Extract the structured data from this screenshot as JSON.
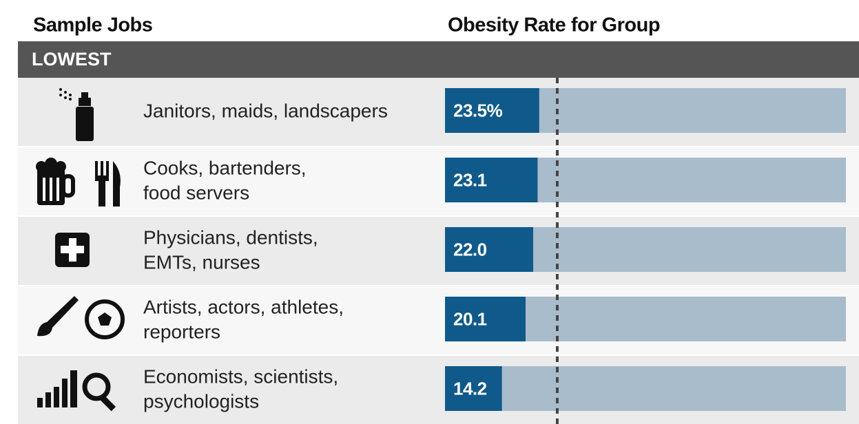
{
  "chart_data": {
    "type": "bar",
    "orientation": "horizontal",
    "column_headers": [
      "Sample Jobs",
      "Obesity Rate for Group"
    ],
    "section": "LOWEST",
    "categories": [
      [
        "Janitors, maids, landscapers"
      ],
      [
        "Cooks, bartenders,",
        "food servers"
      ],
      [
        "Physicians, dentists,",
        "EMTs, nurses"
      ],
      [
        "Artists, actors, athletes,",
        "reporters"
      ],
      [
        "Economists, scientists,",
        "psychologists"
      ]
    ],
    "values": [
      23.5,
      23.1,
      22.0,
      20.1,
      14.2
    ],
    "value_labels": [
      "23.5%",
      "23.1",
      "22.0",
      "20.1",
      "14.2"
    ],
    "color": "#0f5a8a",
    "track_color": "#a9bccb",
    "xlim": [
      0,
      100
    ],
    "reference_line": 28
  }
}
